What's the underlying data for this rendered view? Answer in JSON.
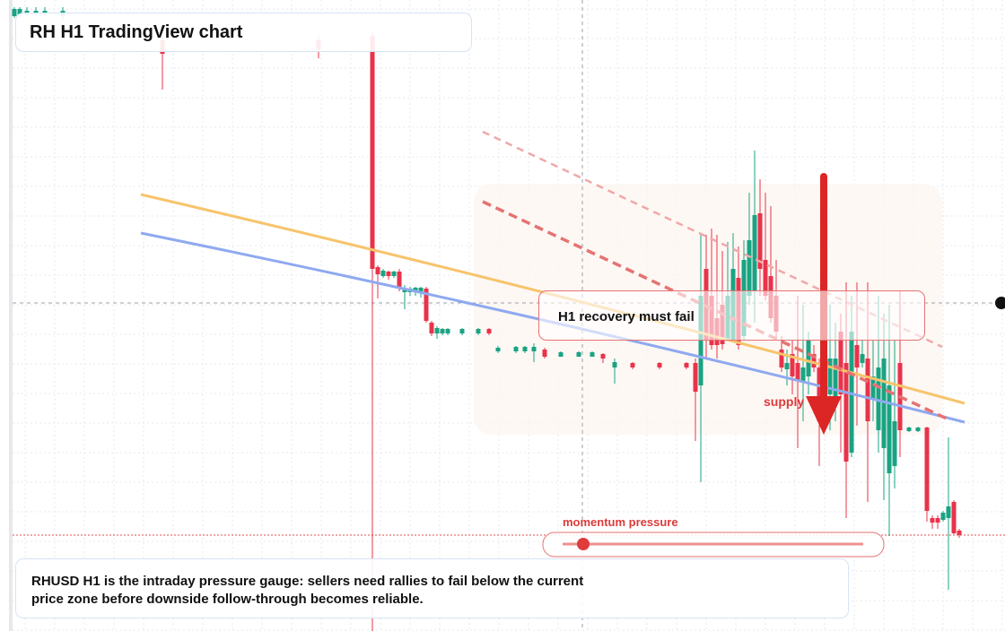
{
  "header": {
    "title": "RH H1 TradingView chart"
  },
  "annotations": {
    "recovery": "H1 recovery must fail",
    "supply": "supply",
    "momentum": "momentum pressure"
  },
  "note": {
    "text": "RHUSD H1 is the intraday pressure gauge: sellers need rallies to fail below the current price zone before downside follow-through becomes reliable."
  }
}
